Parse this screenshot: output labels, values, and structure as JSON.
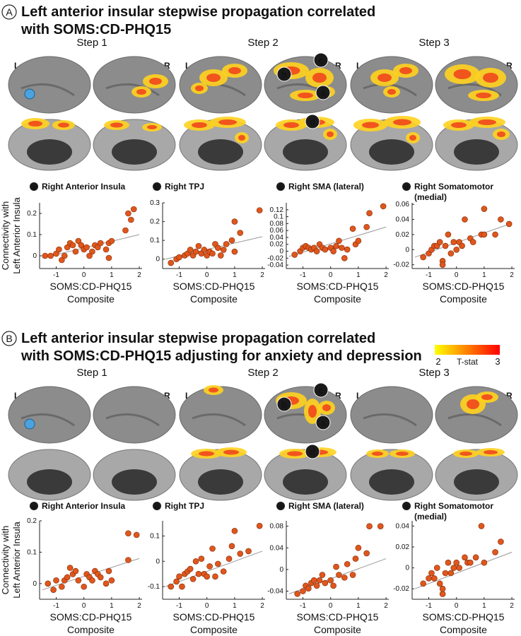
{
  "panels": [
    {
      "label": "A",
      "title": [
        "Left anterior insular stepwise propagation correlated",
        "with SOMS:CD-PHQ15"
      ],
      "steps": [
        "Step 1",
        "Step 2",
        "Step 3"
      ],
      "hemispheres": [
        "L",
        "R"
      ],
      "markers": [
        "a",
        "b",
        "c",
        "d"
      ]
    },
    {
      "label": "B",
      "title": [
        "Left anterior insular stepwise propagation correlated",
        "with SOMS:CD-PHQ15 adjusting for anxiety and depression"
      ],
      "steps": [
        "Step 1",
        "Step 2",
        "Step 3"
      ],
      "hemispheres": [
        "L",
        "R"
      ],
      "markers": [
        "a",
        "b",
        "c",
        "d"
      ]
    }
  ],
  "colorbar": {
    "min": 2,
    "max": 3,
    "label": "T-stat",
    "colors": [
      "#ffff00",
      "#ff0000"
    ]
  },
  "chart_data": [
    {
      "type": "scatter",
      "letter": "a",
      "title": [
        "Right Anterior Insula"
      ],
      "ylabel": [
        "Connectivity with",
        "Left Anterior Insula"
      ],
      "xlabel": [
        "SOMS:CD-PHQ15",
        "Composite"
      ],
      "color": "#e0561c",
      "x": [
        -1.4,
        -1.2,
        -1.0,
        -0.9,
        -0.8,
        -0.7,
        -0.6,
        -0.5,
        -0.4,
        -0.3,
        -0.2,
        -0.1,
        0,
        0.1,
        0.2,
        0.3,
        0.4,
        0.5,
        0.6,
        0.8,
        0.9,
        0.9,
        1.0,
        1.5,
        1.6,
        1.7,
        1.8
      ],
      "y": [
        0,
        0,
        0.01,
        0.03,
        -0.02,
        0,
        0.04,
        0.06,
        0.05,
        0.02,
        0.07,
        0.05,
        0.03,
        0.04,
        0,
        0.02,
        0.05,
        0.04,
        0.06,
        0.03,
        0.06,
        -0.01,
        0.07,
        0.12,
        0.2,
        0.17,
        0.22
      ],
      "fit_line": {
        "x": [
          -1.5,
          2
        ],
        "y": [
          -0.01,
          0.1
        ]
      },
      "xlim": [
        -1.6,
        2.1
      ],
      "xticks": [
        -1,
        0,
        1,
        2
      ],
      "ylim": [
        -0.06,
        0.25
      ],
      "yticks": [
        0,
        0.1,
        0.2
      ]
    },
    {
      "type": "scatter",
      "letter": "b",
      "title": [
        "Right TPJ"
      ],
      "xlabel": [
        "SOMS:CD-PHQ15",
        "Composite"
      ],
      "color": "#e0561c",
      "x": [
        -1.3,
        -1.1,
        -1.0,
        -0.8,
        -0.7,
        -0.6,
        -0.5,
        -0.4,
        -0.3,
        -0.2,
        -0.1,
        0,
        0.1,
        0.2,
        0.3,
        0.4,
        0.5,
        0.6,
        0.7,
        0.9,
        1.0,
        1.0,
        1.2,
        1.9
      ],
      "y": [
        -0.02,
        0,
        0.01,
        0.02,
        0.03,
        0.05,
        0.02,
        0.04,
        0.07,
        0.03,
        0.05,
        0.02,
        0.04,
        0.03,
        0.08,
        0.06,
        0.02,
        0.05,
        0.08,
        0.1,
        0.2,
        0.04,
        0.14,
        0.26
      ],
      "fit_line": {
        "x": [
          -1.5,
          2
        ],
        "y": [
          0,
          0.12
        ]
      },
      "xlim": [
        -1.6,
        2.1
      ],
      "xticks": [
        -1,
        0,
        1,
        2
      ],
      "ylim": [
        -0.05,
        0.3
      ],
      "yticks": [
        0,
        0.1,
        0.2,
        0.3
      ]
    },
    {
      "type": "scatter",
      "letter": "c",
      "title": [
        "Right SMA (lateral)"
      ],
      "xlabel": [
        "SOMS:CD-PHQ15",
        "Composite"
      ],
      "color": "#e0561c",
      "x": [
        -1.3,
        -1.1,
        -1.0,
        -0.9,
        -0.8,
        -0.7,
        -0.6,
        -0.5,
        -0.4,
        -0.3,
        -0.2,
        0,
        0.1,
        0.2,
        0.3,
        0.4,
        0.5,
        0.6,
        0.8,
        0.9,
        1.0,
        1.3,
        1.4,
        1.9
      ],
      "y": [
        -0.01,
        0,
        0.01,
        0.015,
        0.01,
        0.005,
        0.01,
        0,
        0.02,
        0.01,
        0.005,
        0.01,
        0,
        0.015,
        0.03,
        0.01,
        -0.02,
        0.005,
        0.065,
        0.02,
        0.03,
        0.07,
        0.11,
        0.13
      ],
      "fit_line": {
        "x": [
          -1.5,
          2
        ],
        "y": [
          -0.015,
          0.07
        ]
      },
      "xlim": [
        -1.6,
        2.1
      ],
      "xticks": [
        -1,
        0,
        1,
        2
      ],
      "ylim": [
        -0.05,
        0.14
      ],
      "yticks": [
        -0.04,
        -0.02,
        0,
        0.02,
        0.04,
        0.06,
        0.08,
        0.1,
        0.12
      ]
    },
    {
      "type": "scatter",
      "letter": "d",
      "title": [
        "Right Somatomotor",
        "(medial)"
      ],
      "xlabel": [
        "SOMS:CD-PHQ15",
        "Composite"
      ],
      "color": "#e0561c",
      "x": [
        -1.2,
        -1.0,
        -0.9,
        -0.8,
        -0.7,
        -0.6,
        -0.5,
        -0.5,
        -0.4,
        -0.3,
        -0.2,
        -0.1,
        0,
        0.1,
        0.2,
        0.3,
        0.5,
        0.6,
        0.9,
        1.0,
        1.0,
        1.4,
        1.6,
        1.9
      ],
      "y": [
        -0.01,
        -0.005,
        0,
        0.005,
        0.005,
        0.01,
        -0.015,
        -0.02,
        0.005,
        0.02,
        -0.005,
        0.01,
        0,
        0.01,
        0.005,
        0.04,
        0.015,
        0.01,
        0.02,
        0.054,
        0.02,
        0.02,
        0.04,
        0.034
      ],
      "fit_line": {
        "x": [
          -1.5,
          2
        ],
        "y": [
          -0.01,
          0.035
        ]
      },
      "xlim": [
        -1.6,
        2.1
      ],
      "xticks": [
        -1,
        0,
        1,
        2
      ],
      "ylim": [
        -0.025,
        0.062
      ],
      "yticks": [
        -0.02,
        0,
        0.02,
        0.04,
        0.06
      ]
    },
    {
      "type": "scatter",
      "letter": "a",
      "title": [
        "Right Anterior Insula"
      ],
      "ylabel": [
        "Connectivity with",
        "Left Anterior Insula"
      ],
      "xlabel": [
        "SOMS:CD-PHQ15",
        "Composite"
      ],
      "color": "#e0561c",
      "x": [
        -1.3,
        -1.1,
        -1.0,
        -0.8,
        -0.7,
        -0.6,
        -0.5,
        -0.4,
        -0.3,
        -0.2,
        0,
        0.1,
        0.2,
        0.3,
        0.4,
        0.5,
        0.6,
        0.8,
        0.9,
        1.0,
        1.6,
        1.6,
        1.9
      ],
      "y": [
        0,
        -0.02,
        0.01,
        -0.01,
        0.01,
        0.02,
        0.05,
        0.03,
        0.04,
        0.01,
        -0.01,
        0.03,
        0.02,
        0.01,
        0.04,
        0.03,
        0.02,
        0,
        0.04,
        0.01,
        0.16,
        0.075,
        0.155
      ],
      "fit_line": {
        "x": [
          -1.5,
          2
        ],
        "y": [
          -0.02,
          0.08
        ]
      },
      "xlim": [
        -1.6,
        2.1
      ],
      "xticks": [
        -1,
        0,
        1,
        2
      ],
      "ylim": [
        -0.05,
        0.2
      ],
      "yticks": [
        0,
        0.1,
        0.2
      ]
    },
    {
      "type": "scatter",
      "letter": "b",
      "title": [
        "Right TPJ"
      ],
      "xlabel": [
        "SOMS:CD-PHQ15",
        "Composite"
      ],
      "color": "#e0561c",
      "x": [
        -1.3,
        -1.1,
        -1.0,
        -0.9,
        -0.8,
        -0.7,
        -0.6,
        -0.5,
        -0.4,
        -0.3,
        -0.2,
        -0.1,
        0,
        0.1,
        0.2,
        0.3,
        0.4,
        0.6,
        0.8,
        0.9,
        1.0,
        1.2,
        1.5,
        1.9
      ],
      "y": [
        -0.1,
        -0.08,
        -0.06,
        -0.1,
        -0.05,
        -0.04,
        -0.03,
        -0.07,
        0,
        -0.05,
        0.01,
        -0.05,
        -0.06,
        -0.02,
        0.05,
        -0.06,
        -0.01,
        -0.04,
        0.01,
        0.06,
        0.12,
        0.03,
        0.04,
        0.14
      ],
      "fit_line": {
        "x": [
          -1.5,
          2
        ],
        "y": [
          -0.1,
          0.04
        ]
      },
      "xlim": [
        -1.6,
        2.1
      ],
      "xticks": [
        -1,
        0,
        1,
        2
      ],
      "ylim": [
        -0.15,
        0.16
      ],
      "yticks": [
        -0.1,
        0,
        0.1
      ]
    },
    {
      "type": "scatter",
      "letter": "c",
      "title": [
        "Right SMA (lateral)"
      ],
      "xlabel": [
        "SOMS:CD-PHQ15",
        "Composite"
      ],
      "color": "#e0561c",
      "x": [
        -1.2,
        -1.0,
        -0.9,
        -0.8,
        -0.7,
        -0.6,
        -0.5,
        -0.4,
        -0.3,
        -0.2,
        0,
        0.1,
        0.2,
        0.3,
        0.5,
        0.6,
        0.8,
        0.9,
        1.0,
        1.3,
        1.4,
        1.8
      ],
      "y": [
        -0.045,
        -0.04,
        -0.03,
        -0.035,
        -0.025,
        -0.02,
        -0.03,
        -0.02,
        -0.01,
        -0.025,
        -0.02,
        -0.03,
        0.005,
        -0.01,
        -0.015,
        0.01,
        -0.01,
        0.02,
        0.04,
        0.03,
        0.08,
        0.08
      ],
      "fit_line": {
        "x": [
          -1.5,
          2
        ],
        "y": [
          -0.045,
          0.02
        ]
      },
      "xlim": [
        -1.6,
        2.1
      ],
      "xticks": [
        -1,
        0,
        1,
        2
      ],
      "ylim": [
        -0.055,
        0.09
      ],
      "yticks": [
        -0.04,
        0,
        0.04,
        0.08
      ]
    },
    {
      "type": "scatter",
      "letter": "d",
      "title": [
        "Right Somatomotor",
        "(medial)"
      ],
      "xlabel": [
        "SOMS:CD-PHQ15",
        "Composite"
      ],
      "color": "#e0561c",
      "x": [
        -1.2,
        -1.0,
        -0.9,
        -0.8,
        -0.7,
        -0.6,
        -0.5,
        -0.5,
        -0.4,
        -0.3,
        -0.2,
        -0.1,
        0,
        0.1,
        0.3,
        0.4,
        0.5,
        0.7,
        0.9,
        1.0,
        1.4,
        1.6
      ],
      "y": [
        -0.015,
        -0.01,
        -0.005,
        -0.01,
        0,
        -0.015,
        -0.025,
        -0.02,
        -0.005,
        0.005,
        -0.005,
        0,
        0.005,
        0,
        0.01,
        0.005,
        0.005,
        0.01,
        0.04,
        0.005,
        0.015,
        0.025
      ],
      "fit_line": {
        "x": [
          -1.5,
          2
        ],
        "y": [
          -0.02,
          0.015
        ]
      },
      "xlim": [
        -1.6,
        2.1
      ],
      "xticks": [
        -1,
        0,
        1,
        2
      ],
      "ylim": [
        -0.03,
        0.045
      ],
      "yticks": [
        -0.02,
        0,
        0.02,
        0.04
      ]
    }
  ]
}
